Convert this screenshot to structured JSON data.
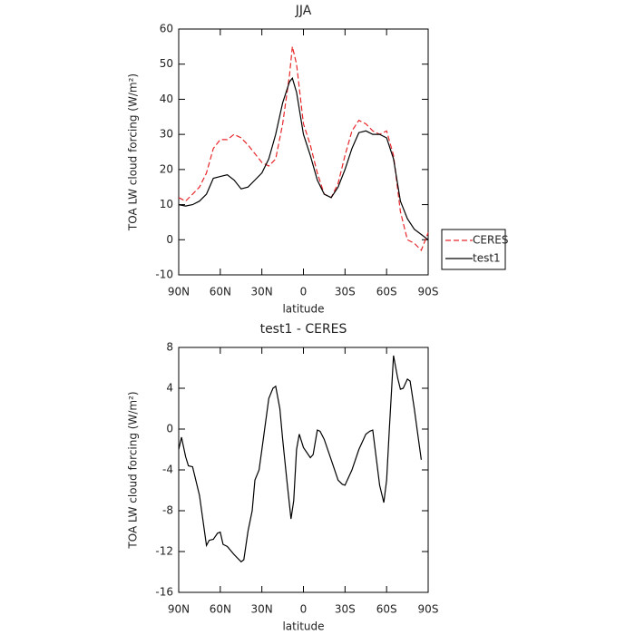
{
  "chart_data": [
    {
      "type": "line",
      "title": "JJA",
      "xlabel": "latitude",
      "ylabel": "TOA LW cloud forcing (W/m²)",
      "x": [
        90,
        85,
        80,
        75,
        70,
        65,
        60,
        55,
        50,
        45,
        40,
        35,
        30,
        25,
        20,
        15,
        10,
        8,
        5,
        0,
        -5,
        -10,
        -15,
        -20,
        -25,
        -30,
        -35,
        -40,
        -45,
        -50,
        -55,
        -60,
        -65,
        -70,
        -75,
        -80,
        -85,
        -90
      ],
      "series": [
        {
          "name": "CERES",
          "color": "#e8262a",
          "linestyle": "dashed",
          "values": [
            12,
            11,
            13,
            15,
            19,
            26,
            28.5,
            28.5,
            30,
            29,
            27,
            24.5,
            22,
            21,
            23,
            33,
            47,
            55,
            50,
            33,
            27,
            19,
            13,
            12,
            16,
            24,
            31,
            34,
            33,
            31,
            30,
            31,
            24,
            8,
            0,
            -1,
            -3,
            2
          ]
        },
        {
          "name": "test1",
          "color": "#000000",
          "linestyle": "solid",
          "values": [
            10,
            9.6,
            10,
            11,
            13,
            17.5,
            18,
            18.5,
            17,
            14.5,
            15,
            17,
            19,
            23,
            30,
            39,
            45,
            46,
            42,
            30,
            24,
            17,
            13,
            12,
            15,
            20,
            26,
            30.5,
            31,
            30,
            30,
            29,
            23,
            11,
            6,
            3,
            1.5,
            0
          ]
        }
      ],
      "xlim": [
        90,
        -90
      ],
      "xticks": [
        {
          "value": 90,
          "label": "90N"
        },
        {
          "value": 60,
          "label": "60N"
        },
        {
          "value": 30,
          "label": "30N"
        },
        0,
        {
          "value": -30,
          "label": "30S"
        },
        {
          "value": -60,
          "label": "60S"
        },
        {
          "value": -90,
          "label": "90S"
        }
      ],
      "ylim": [
        -10,
        60
      ],
      "yticks": [
        -10,
        0,
        10,
        20,
        30,
        40,
        50,
        60
      ],
      "legend": "right"
    },
    {
      "type": "line",
      "title": "test1 - CERES",
      "xlabel": "latitude",
      "ylabel": "TOA LW cloud forcing (W/m²)",
      "x": [
        90,
        88,
        85,
        83,
        80,
        75,
        70,
        68,
        65,
        62,
        60,
        58,
        55,
        50,
        45,
        43,
        40,
        37,
        35,
        32,
        30,
        25,
        22,
        20,
        17,
        15,
        12,
        9,
        7,
        5,
        3,
        0,
        -5,
        -7,
        -10,
        -12,
        -15,
        -20,
        -25,
        -28,
        -30,
        -35,
        -40,
        -45,
        -48,
        -50,
        -55,
        -58,
        -60,
        -62,
        -65,
        -68,
        -70,
        -72,
        -75,
        -77,
        -80,
        -83,
        -85
      ],
      "series": [
        {
          "color": "#000000",
          "linestyle": "solid",
          "values": [
            -2,
            -0.8,
            -2.7,
            -3.6,
            -3.7,
            -6.5,
            -11.4,
            -10.9,
            -10.8,
            -10.2,
            -10.1,
            -11.3,
            -11.5,
            -12.3,
            -13,
            -12.8,
            -10,
            -8,
            -5,
            -4,
            -2,
            3,
            4,
            4.2,
            2,
            -1,
            -5,
            -8.8,
            -7,
            -2,
            -0.5,
            -1.8,
            -2.8,
            -2.5,
            -0.1,
            -0.2,
            -1,
            -3,
            -5,
            -5.4,
            -5.5,
            -4,
            -2,
            -0.5,
            -0.2,
            -0.1,
            -5.5,
            -7.2,
            -5,
            0,
            7.2,
            5,
            3.9,
            4,
            4.9,
            4.7,
            2,
            -1,
            -3
          ]
        }
      ],
      "xlim": [
        90,
        -90
      ],
      "xticks": [
        {
          "value": 90,
          "label": "90N"
        },
        {
          "value": 60,
          "label": "60N"
        },
        {
          "value": 30,
          "label": "30N"
        },
        0,
        {
          "value": -30,
          "label": "30S"
        },
        {
          "value": -60,
          "label": "60S"
        },
        {
          "value": -90,
          "label": "90S"
        }
      ],
      "ylim": [
        -16,
        8
      ],
      "yticks": [
        -16,
        -12,
        -8,
        -4,
        0,
        4,
        8
      ]
    }
  ]
}
